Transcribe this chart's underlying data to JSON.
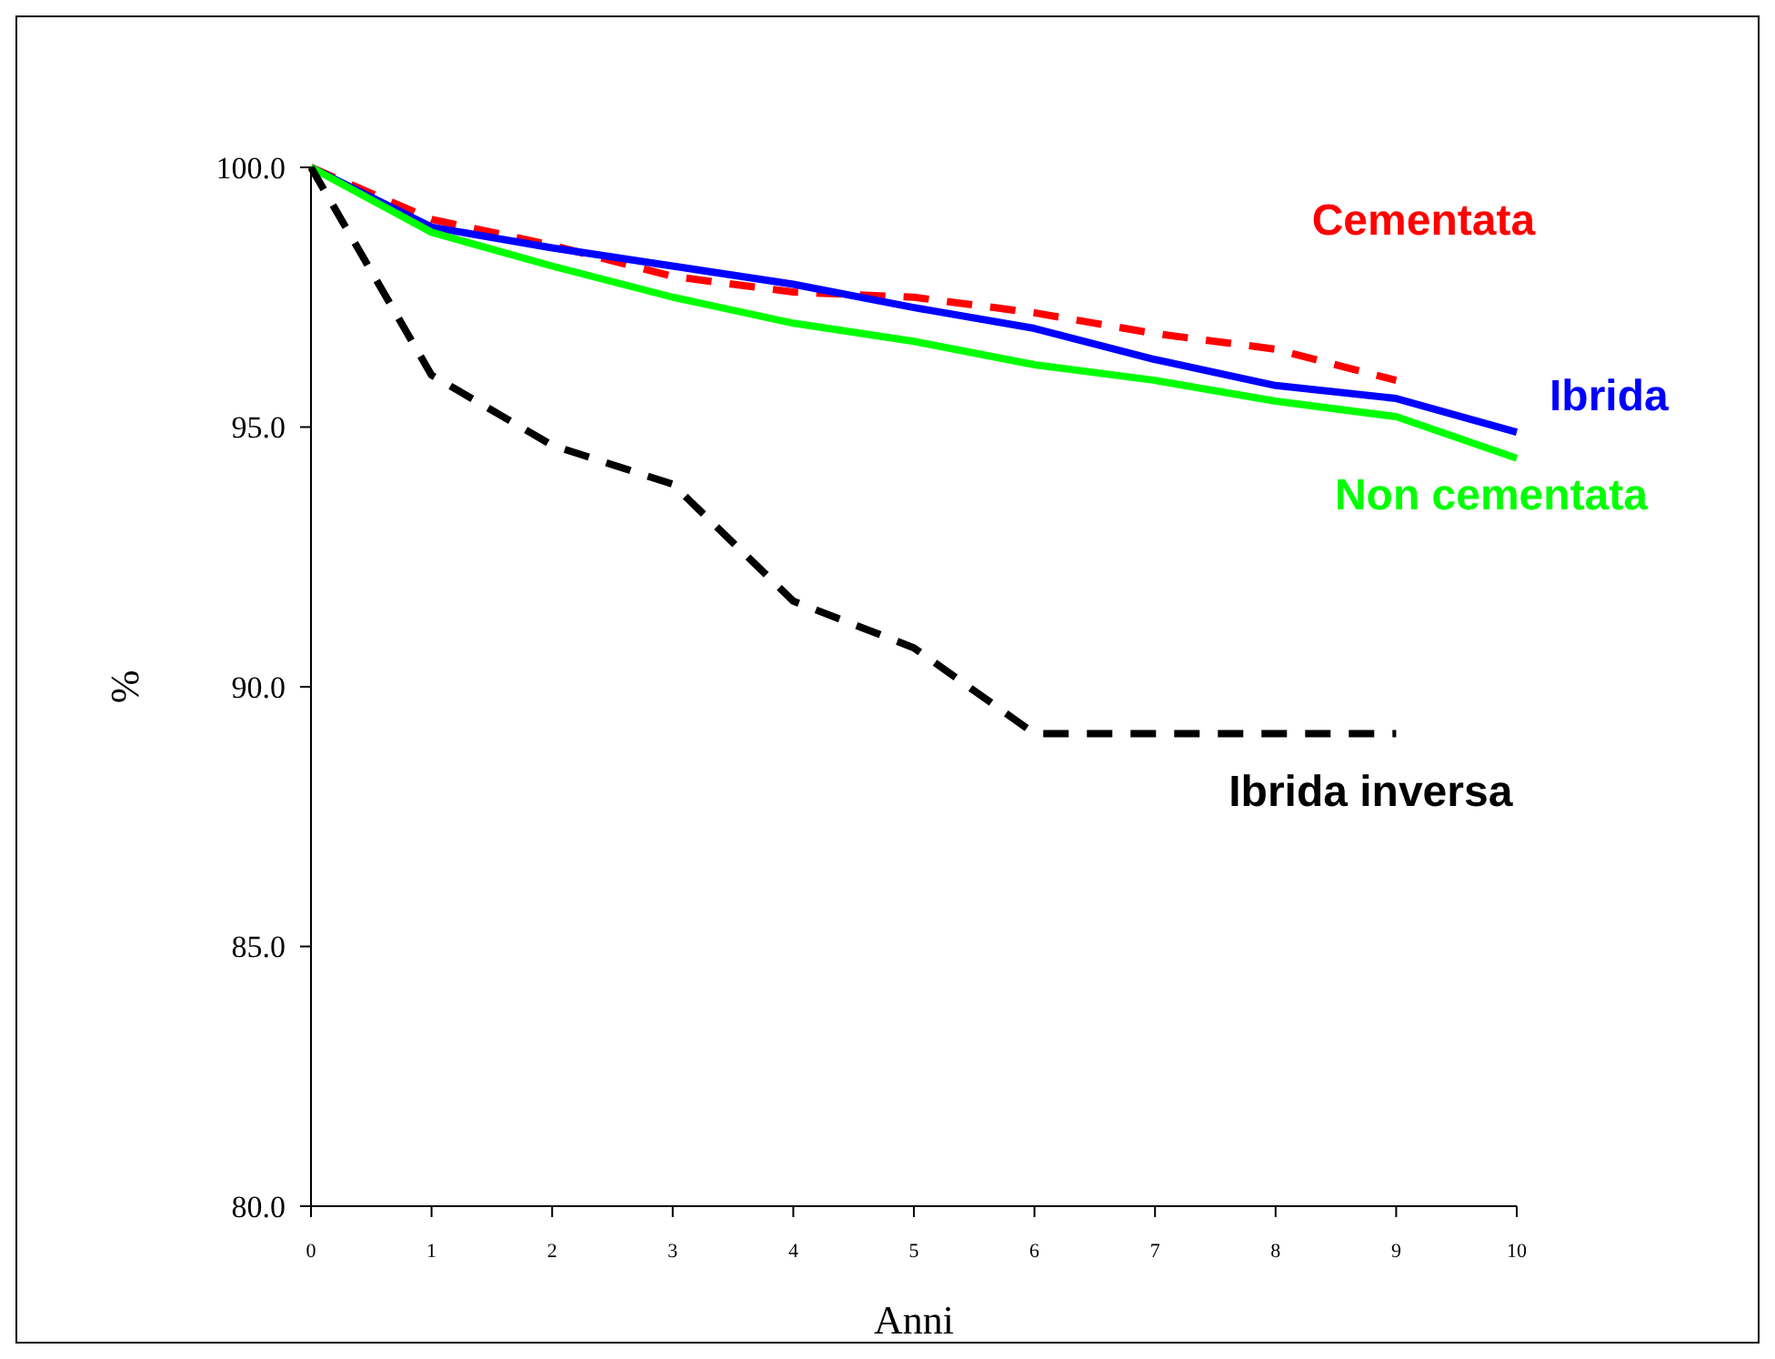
{
  "chart_data": {
    "type": "line",
    "xlabel": "Anni",
    "ylabel": "%",
    "x": [
      0,
      1,
      2,
      3,
      4,
      5,
      6,
      7,
      8,
      9,
      10
    ],
    "xlim": [
      0,
      10
    ],
    "xticks": [
      0,
      1,
      2,
      3,
      4,
      5,
      6,
      7,
      8,
      9,
      10
    ],
    "ylim": [
      80,
      100
    ],
    "yticks": [
      {
        "value": 80,
        "label": "80.0"
      },
      {
        "value": 85,
        "label": "85.0"
      },
      {
        "value": 90,
        "label": "90.0"
      },
      {
        "value": 95,
        "label": "95.0"
      },
      {
        "value": 100,
        "label": "100.0"
      }
    ],
    "marker": "none",
    "series": [
      {
        "name": "Cementata",
        "color": "#ff0000",
        "line_style": "dashed",
        "values": [
          100,
          99.0,
          98.5,
          97.9,
          97.6,
          97.5,
          97.2,
          96.8,
          96.5,
          95.9,
          null
        ]
      },
      {
        "name": "Ibrida",
        "color": "#0000ff",
        "line_style": "solid",
        "values": [
          100,
          98.85,
          98.45,
          98.1,
          97.75,
          97.3,
          96.9,
          96.3,
          95.8,
          95.55,
          94.9
        ]
      },
      {
        "name": "Non cementata",
        "color": "#00ff00",
        "line_style": "solid",
        "values": [
          100,
          98.75,
          98.1,
          97.5,
          97.0,
          96.65,
          96.2,
          95.9,
          95.5,
          95.2,
          94.4
        ]
      },
      {
        "name": "Ibrida inversa",
        "color": "#000000",
        "line_style": "dashed",
        "values": [
          100,
          96.0,
          94.65,
          93.9,
          91.65,
          90.75,
          89.1,
          89.1,
          89.1,
          89.1,
          null
        ]
      }
    ]
  }
}
